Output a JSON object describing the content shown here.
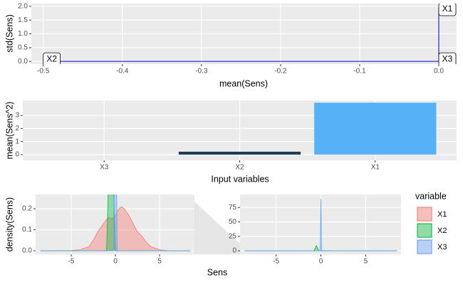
{
  "chart_data": [
    {
      "type": "scatter",
      "x_label": "mean(Sens)",
      "y_label": "std(Sens)",
      "categories": [
        "X1",
        "X2",
        "X3"
      ],
      "x": [
        0,
        -0.5,
        0
      ],
      "values": [
        1.95,
        0,
        0
      ],
      "color": "#0000cd",
      "xlim": [
        -0.515,
        0.0225
      ],
      "xticks": [
        -0.5,
        -0.4,
        -0.3,
        -0.2,
        -0.1,
        {
          "value": 0,
          "label": "0.0"
        }
      ],
      "ylim": [
        -0.1,
        2.1
      ],
      "yticks": [
        {
          "value": 0,
          "label": "0.0"
        },
        0.5,
        {
          "value": 1,
          "label": "1.0"
        },
        1.5,
        {
          "value": 2,
          "label": "2.0"
        }
      ],
      "grid": true
    },
    {
      "type": "bar",
      "x_label": "Input variables",
      "y_label": "mean(Sens^2)",
      "categories": [
        "X3",
        "X2",
        "X1"
      ],
      "values": [
        0,
        0.22,
        3.98
      ],
      "colors": [
        "#132b43",
        "#1d3a57",
        "#56b1f7"
      ],
      "ylim": [
        -0.44,
        4.15
      ],
      "yticks": [
        0,
        1,
        2,
        3
      ],
      "grid": true
    },
    {
      "type": "density",
      "x_label": "Sens",
      "y_label": "density(Sens)",
      "legend_title": "variable",
      "xlim": [
        -9.03,
        8.95
      ],
      "xticks": [
        -5,
        0,
        5
      ],
      "grid": true,
      "series": [
        {
          "name": "X1",
          "color": "#f8766d",
          "x": [
            -8.5,
            -5,
            -4,
            -3,
            -2.5,
            -2,
            -1.5,
            -1,
            -0.7,
            -0.4,
            0,
            0.4,
            0.7,
            1,
            1.5,
            2,
            2.5,
            3,
            3.5,
            4,
            5,
            6,
            8.5
          ],
          "values": [
            0,
            0.001,
            0.005,
            0.02,
            0.05,
            0.09,
            0.12,
            0.15,
            0.16,
            0.15,
            0.17,
            0.2,
            0.21,
            0.2,
            0.17,
            0.13,
            0.09,
            0.07,
            0.04,
            0.02,
            0.005,
            0,
            0
          ]
        },
        {
          "name": "X2",
          "color": "#00ba38",
          "x": [
            -8.5,
            -1,
            -0.8,
            -0.7,
            -0.6,
            -0.5,
            -0.4,
            -0.3,
            -0.2,
            0,
            8.5
          ],
          "values": [
            0,
            0,
            0.3,
            2,
            6,
            9,
            6,
            2,
            0.3,
            0,
            0
          ]
        },
        {
          "name": "X3",
          "color": "#619cff",
          "x": [
            -8.5,
            -0.2,
            -0.1,
            -0.05,
            0,
            0.05,
            0.1,
            0.2,
            8.5
          ],
          "values": [
            0,
            0,
            0.5,
            20,
            90,
            20,
            0.5,
            0,
            0
          ]
        }
      ],
      "panels": [
        {
          "ylim": [
            -0.017,
            0.268
          ],
          "yticks": [
            {
              "value": 0,
              "label": "0.0"
            },
            0.1,
            0.2
          ]
        },
        {
          "ylim": [
            -6.2,
            97.5
          ],
          "yticks": [
            0,
            25,
            50,
            75
          ]
        }
      ]
    }
  ]
}
